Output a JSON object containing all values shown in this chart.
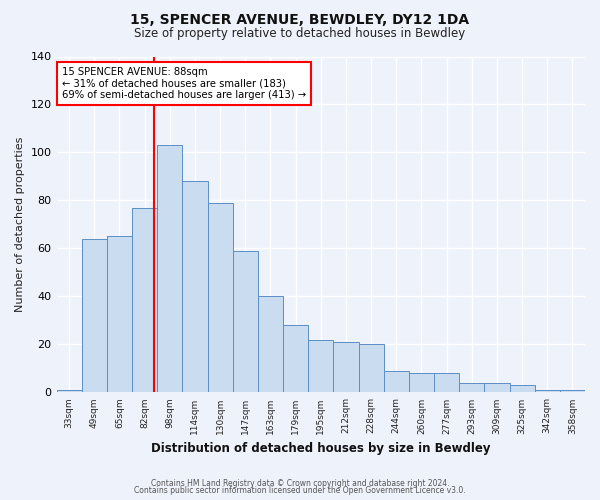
{
  "title_line1": "15, SPENCER AVENUE, BEWDLEY, DY12 1DA",
  "title_line2": "Size of property relative to detached houses in Bewdley",
  "xlabel": "Distribution of detached houses by size in Bewdley",
  "ylabel": "Number of detached properties",
  "categories": [
    "33sqm",
    "49sqm",
    "65sqm",
    "82sqm",
    "98sqm",
    "114sqm",
    "130sqm",
    "147sqm",
    "163sqm",
    "179sqm",
    "195sqm",
    "212sqm",
    "228sqm",
    "244sqm",
    "260sqm",
    "277sqm",
    "293sqm",
    "309sqm",
    "325sqm",
    "342sqm",
    "358sqm"
  ],
  "bar_values": [
    1,
    64,
    65,
    77,
    103,
    88,
    79,
    59,
    40,
    28,
    22,
    21,
    20,
    9,
    8,
    8,
    4,
    4,
    3,
    1,
    1
  ],
  "bar_color": "#c9dcf0",
  "bar_edge_color": "#5b8fc7",
  "annotation_title": "15 SPENCER AVENUE: 88sqm",
  "annotation_line2": "← 31% of detached houses are smaller (183)",
  "annotation_line3": "69% of semi-detached houses are larger (413) →",
  "footer_line1": "Contains HM Land Registry data © Crown copyright and database right 2024.",
  "footer_line2": "Contains public sector information licensed under the Open Government Licence v3.0.",
  "ylim": [
    0,
    140
  ],
  "background_color": "#eef2fb",
  "plot_bg_color": "#eef2fb",
  "grid_color": "#ffffff"
}
